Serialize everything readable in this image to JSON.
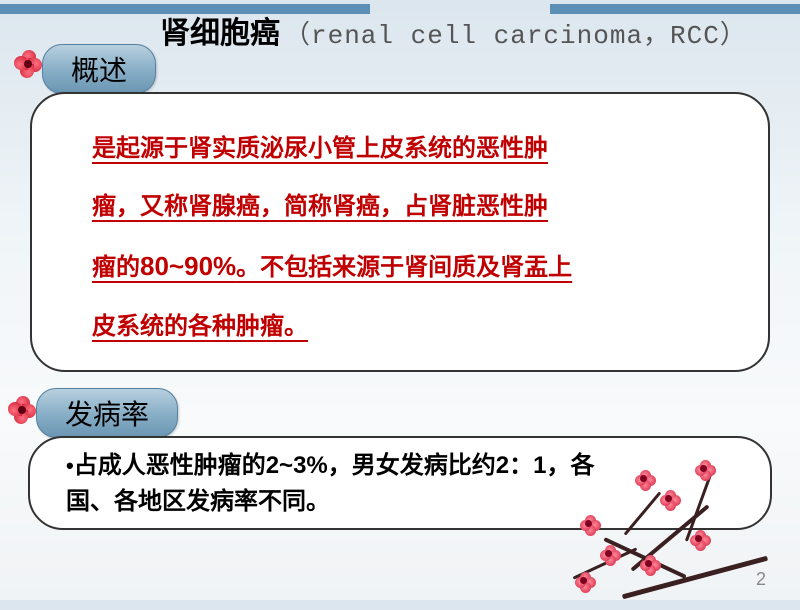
{
  "title": {
    "zh": "肾细胞癌",
    "en": "（renal cell  carcinoma，RCC）"
  },
  "sections": {
    "overview": {
      "label": "概述"
    },
    "incidence": {
      "label": "发病率"
    }
  },
  "definition": {
    "line1": "是起源于肾实质泌尿小管上皮系统的恶性肿",
    "line2": "瘤，又称肾腺癌，简称肾癌，占肾脏恶性肿",
    "line3_a": "瘤的",
    "line3_pct": "80~90%",
    "line3_b": "。不包括来源于肾间质及肾盂上",
    "line4": "皮系统的各种肿瘤。"
  },
  "incidence_text": {
    "line1": "占成人恶性肿瘤的2~3%，男女发病比约2：1，各",
    "line2": "国、各地区发病率不同。"
  },
  "page_number": "2",
  "colors": {
    "accent_gradient_top": "#b8d0e0",
    "accent_gradient_bottom": "#6a95b2",
    "definition_text": "#c00000",
    "banner": "#5c8fb5",
    "branch": "#3a2020",
    "blossom": "#d02040"
  }
}
